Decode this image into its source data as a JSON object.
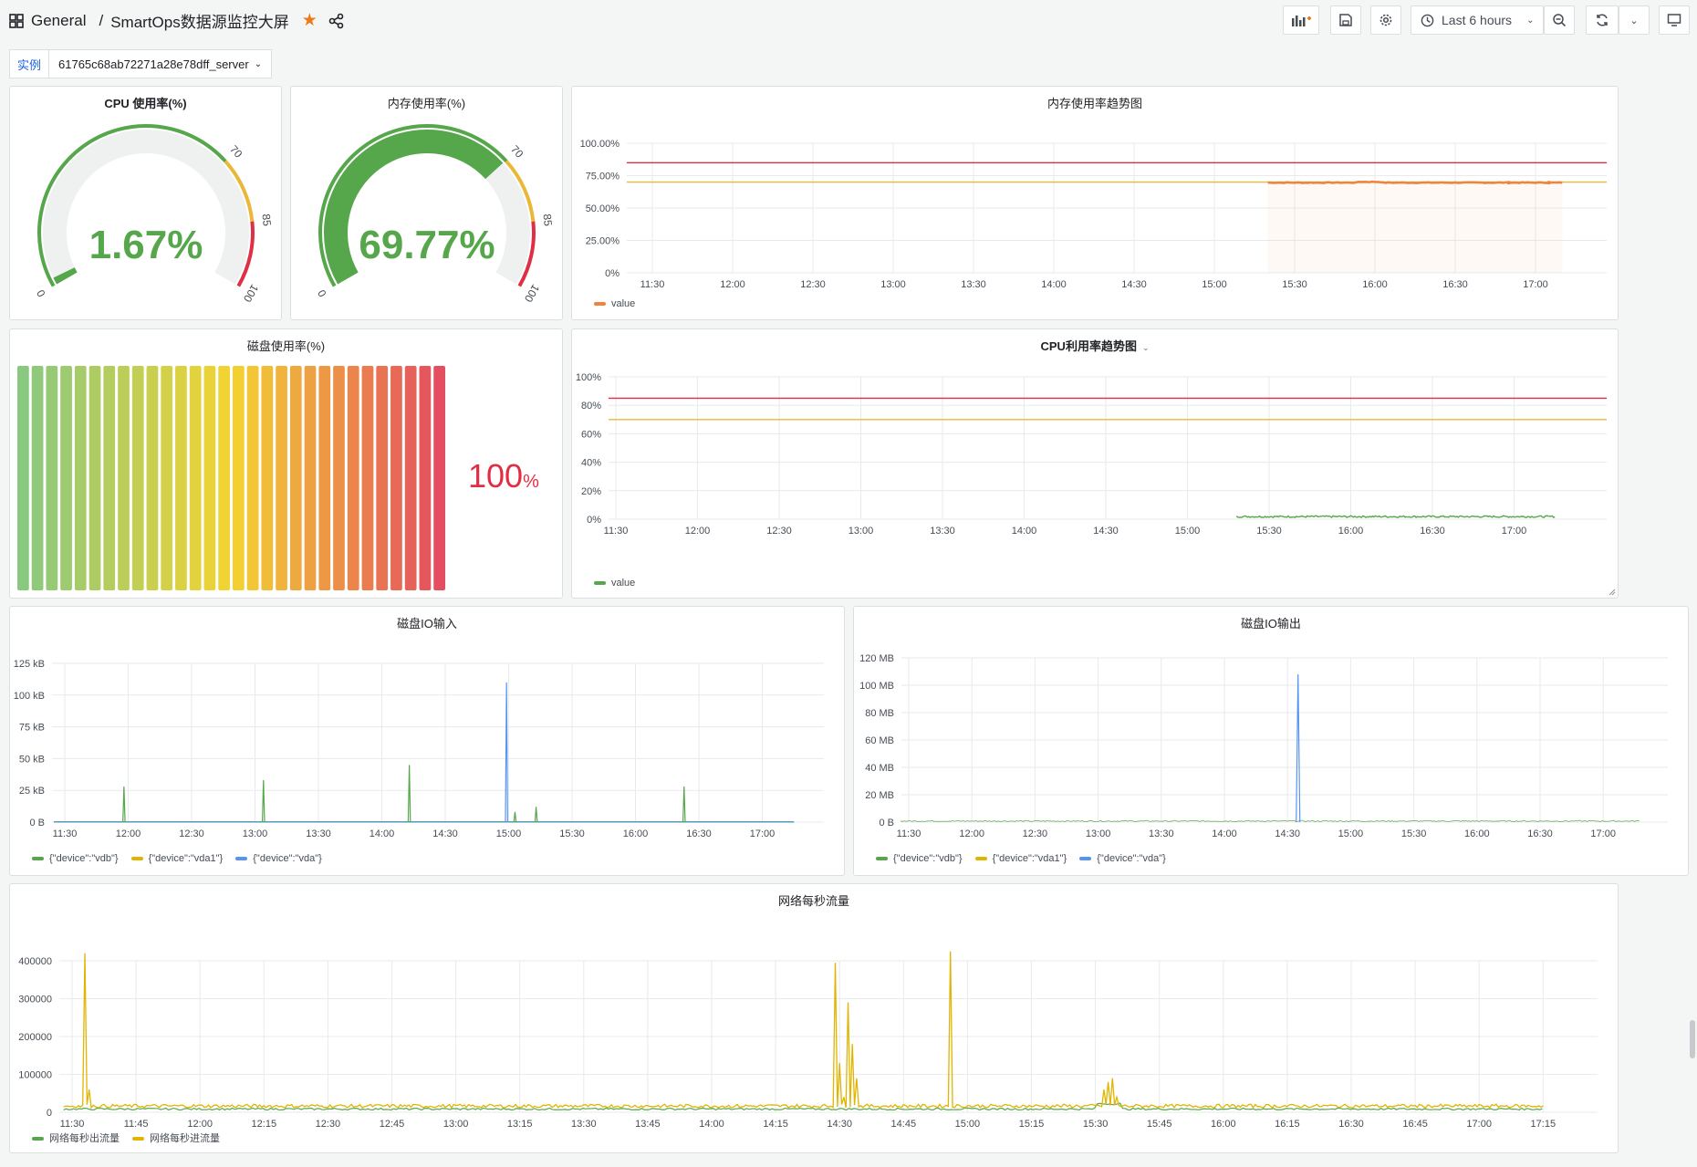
{
  "header": {
    "folder": "General",
    "separator": "/",
    "title": "SmartOps数据源监控大屏",
    "time_range": "Last 6 hours"
  },
  "variable": {
    "label": "实例",
    "value": "61765c68ab72271a28e78dff_server"
  },
  "gauges": [
    {
      "title": "CPU 使用率(%)",
      "value": "1.67%",
      "fraction": 0.0167,
      "color": "#56a64b"
    },
    {
      "title": "内存使用率(%)",
      "value": "69.77%",
      "fraction": 0.6977,
      "color": "#56a64b"
    }
  ],
  "gauge_scale": {
    "t0": "0",
    "t70": "70",
    "t85": "85",
    "t100": "100"
  },
  "disk": {
    "title": "磁盘使用率(%)",
    "value": "100",
    "unit": "%",
    "segments": 30,
    "color": "#e02f44"
  },
  "colors": {
    "green": "#56a64b",
    "yellow": "#e0b400",
    "blue": "#5794f2",
    "orange": "#ef843c",
    "red": "#e02f44",
    "threshold_yellow": "#eab839"
  },
  "mem_trend": {
    "title": "内存使用率趋势图",
    "y_ticks": [
      "100.00%",
      "75.00%",
      "50.00%",
      "25.00%",
      "0%"
    ],
    "x_ticks": [
      "11:30",
      "12:00",
      "12:30",
      "13:00",
      "13:30",
      "14:00",
      "14:30",
      "15:00",
      "15:30",
      "16:00",
      "16:30",
      "17:00"
    ],
    "legend": "value"
  },
  "cpu_trend": {
    "title": "CPU利用率趋势图",
    "y_ticks": [
      "100%",
      "80%",
      "60%",
      "40%",
      "20%",
      "0%"
    ],
    "x_ticks": [
      "11:30",
      "12:00",
      "12:30",
      "13:00",
      "13:30",
      "14:00",
      "14:30",
      "15:00",
      "15:30",
      "16:00",
      "16:30",
      "17:00"
    ],
    "legend": "value"
  },
  "disk_in": {
    "title": "磁盘IO输入",
    "y_ticks": [
      "125 kB",
      "100 kB",
      "75 kB",
      "50 kB",
      "25 kB",
      "0 B"
    ],
    "x_ticks": [
      "11:30",
      "12:00",
      "12:30",
      "13:00",
      "13:30",
      "14:00",
      "14:30",
      "15:00",
      "15:30",
      "16:00",
      "16:30",
      "17:00"
    ],
    "legend": [
      "{\"device\":\"vdb\"}",
      "{\"device\":\"vda1\"}",
      "{\"device\":\"vda\"}"
    ]
  },
  "disk_out": {
    "title": "磁盘IO输出",
    "y_ticks": [
      "120 MB",
      "100 MB",
      "80 MB",
      "60 MB",
      "40 MB",
      "20 MB",
      "0 B"
    ],
    "x_ticks": [
      "11:30",
      "12:00",
      "12:30",
      "13:00",
      "13:30",
      "14:00",
      "14:30",
      "15:00",
      "15:30",
      "16:00",
      "16:30",
      "17:00"
    ],
    "legend": [
      "{\"device\":\"vdb\"}",
      "{\"device\":\"vda1\"}",
      "{\"device\":\"vda\"}"
    ]
  },
  "network": {
    "title": "网络每秒流量",
    "y_ticks": [
      "400000",
      "300000",
      "200000",
      "100000",
      "0"
    ],
    "x_ticks": [
      "11:30",
      "11:45",
      "12:00",
      "12:15",
      "12:30",
      "12:45",
      "13:00",
      "13:15",
      "13:30",
      "13:45",
      "14:00",
      "14:15",
      "14:30",
      "14:45",
      "15:00",
      "15:15",
      "15:30",
      "15:45",
      "16:00",
      "16:15",
      "16:30",
      "16:45",
      "17:00",
      "17:15"
    ],
    "legend": [
      "网络每秒出流量",
      "网络每秒进流量"
    ]
  },
  "chart_data": [
    {
      "type": "line",
      "title": "内存使用率趋势图",
      "ylabel": "",
      "ylim": [
        0,
        100
      ],
      "x": [
        "15:20",
        "15:30",
        "15:40",
        "16:00",
        "16:20",
        "16:40",
        "16:50",
        "17:00",
        "17:10"
      ],
      "series": [
        {
          "name": "value",
          "values": [
            69.5,
            70,
            70.5,
            69.8,
            69.8,
            69.7,
            69.6,
            69.7,
            69.6
          ]
        }
      ],
      "thresholds": [
        70,
        85
      ]
    },
    {
      "type": "line",
      "title": "CPU利用率趋势图",
      "ylabel": "",
      "ylim": [
        0,
        100
      ],
      "x": [
        "15:20",
        "15:30",
        "15:40",
        "16:00",
        "16:20",
        "16:40",
        "17:00",
        "17:10"
      ],
      "series": [
        {
          "name": "value",
          "values": [
            1.5,
            2,
            1.8,
            1.7,
            1.6,
            1.8,
            1.5,
            1.6
          ]
        }
      ],
      "thresholds": [
        70,
        85
      ]
    },
    {
      "type": "line",
      "title": "磁盘IO输入",
      "ylabel": "kB",
      "ylim": [
        0,
        125
      ],
      "x": [
        "11:58",
        "13:04",
        "14:13",
        "14:59",
        "15:03",
        "15:13",
        "16:23"
      ],
      "series": [
        {
          "name": "{\"device\":\"vdb\"}",
          "values": [
            28,
            33,
            45,
            0,
            8,
            12,
            28
          ]
        },
        {
          "name": "{\"device\":\"vda1\"}",
          "values": [
            0,
            0,
            0,
            0,
            0,
            0,
            0
          ]
        },
        {
          "name": "{\"device\":\"vda\"}",
          "values": [
            0,
            0,
            0,
            110,
            0,
            0,
            0
          ]
        }
      ]
    },
    {
      "type": "line",
      "title": "磁盘IO输出",
      "ylabel": "MB",
      "ylim": [
        0,
        120
      ],
      "x": [
        "11:30",
        "14:35",
        "17:20"
      ],
      "series": [
        {
          "name": "{\"device\":\"vdb\"}",
          "values": [
            0.5,
            0.5,
            0.5
          ]
        },
        {
          "name": "{\"device\":\"vda1\"}",
          "values": [
            0,
            0,
            0
          ]
        },
        {
          "name": "{\"device\":\"vda\"}",
          "values": [
            0,
            108,
            0
          ]
        }
      ]
    },
    {
      "type": "line",
      "title": "网络每秒流量",
      "ylabel": "",
      "ylim": [
        0,
        450000
      ],
      "x": [
        "11:30",
        "11:34",
        "11:36",
        "14:29",
        "14:30",
        "14:32",
        "14:33",
        "14:56",
        "15:33",
        "15:40",
        "17:15"
      ],
      "series": [
        {
          "name": "网络每秒出流量",
          "values": [
            8000,
            9000,
            8000,
            9000,
            10000,
            9000,
            8000,
            9000,
            20000,
            9000,
            9000
          ]
        },
        {
          "name": "网络每秒进流量",
          "values": [
            15000,
            420000,
            15000,
            15000,
            395000,
            290000,
            170000,
            425000,
            80000,
            20000,
            15000
          ]
        }
      ]
    }
  ]
}
